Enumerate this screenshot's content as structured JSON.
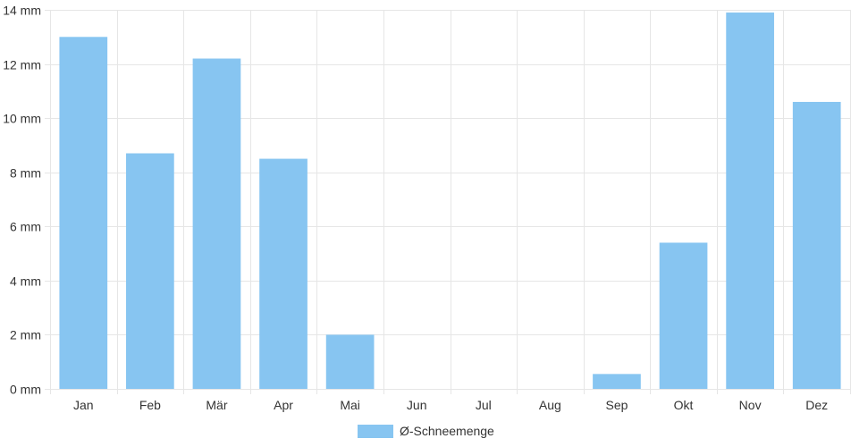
{
  "chart_data": {
    "type": "bar",
    "categories": [
      "Jan",
      "Feb",
      "Mär",
      "Apr",
      "Mai",
      "Jun",
      "Jul",
      "Aug",
      "Sep",
      "Okt",
      "Nov",
      "Dez"
    ],
    "series": [
      {
        "name": "Ø-Schneemenge",
        "values": [
          13.0,
          8.7,
          12.2,
          8.5,
          2.0,
          0,
          0,
          0,
          0.55,
          5.4,
          13.9,
          10.6
        ]
      }
    ],
    "ylim": [
      0,
      14
    ],
    "yticks": [
      0,
      2,
      4,
      6,
      8,
      10,
      12,
      14
    ],
    "ytick_labels": [
      "0 mm",
      "2 mm",
      "4 mm",
      "6 mm",
      "8 mm",
      "10 mm",
      "12 mm",
      "14 mm"
    ],
    "grid": true,
    "legend_position": "bottom-center",
    "colors": {
      "bar": "#87c5f1",
      "grid": "#e6e6e6",
      "text": "#333333"
    }
  }
}
